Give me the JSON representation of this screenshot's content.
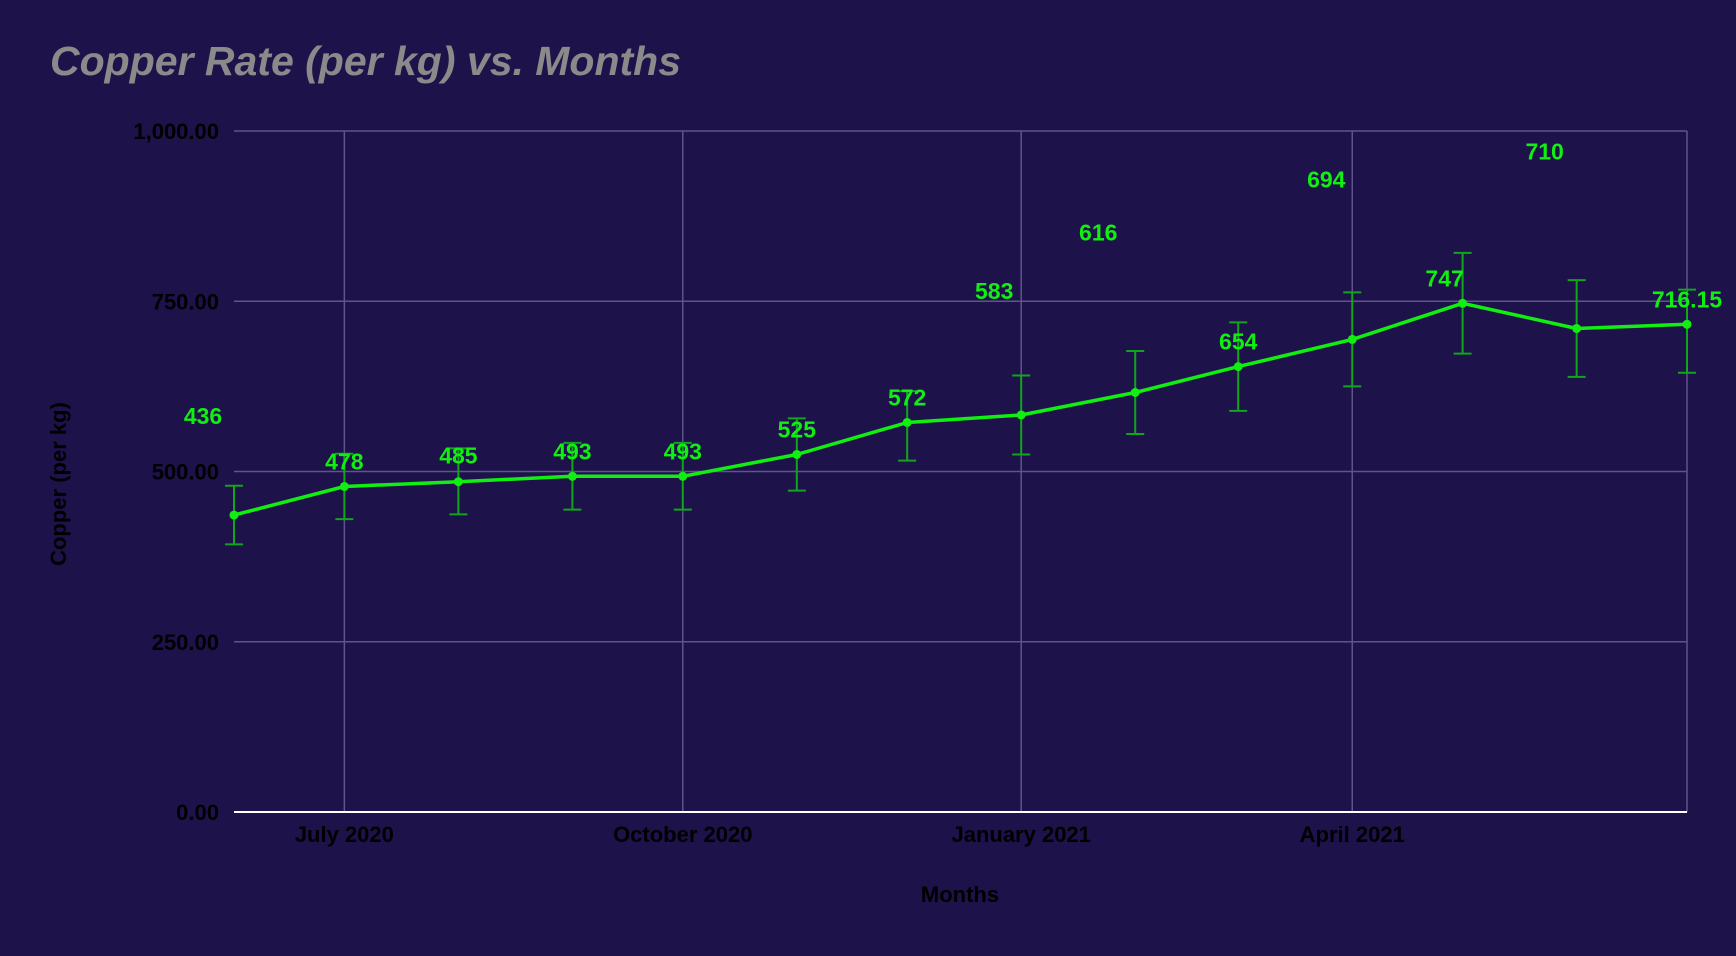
{
  "colors": {
    "background": "#1e124a",
    "title": "#8a8a8a",
    "line": "#11ee11",
    "error_bar": "#11a51b",
    "grid": "#5f5588",
    "axis_text": "#000000",
    "axis_line": "#ffffff"
  },
  "chart_data": {
    "type": "line",
    "title": "Copper Rate (per kg) vs. Months",
    "xlabel": "Months",
    "ylabel": "Copper (per kg)",
    "x_tick_labels": [
      "July 2020",
      "October 2020",
      "January 2021",
      "April 2021"
    ],
    "x_tick_dates": [
      "2020-07-01",
      "2020-10-01",
      "2021-01-01",
      "2021-04-01"
    ],
    "x_range": [
      "2020-06-01",
      "2021-07-01"
    ],
    "y_tick_labels": [
      "0.00",
      "250.00",
      "500.00",
      "750.00",
      "1,000.00"
    ],
    "ylim": [
      0,
      1000
    ],
    "grid": true,
    "series": [
      {
        "x": [
          "2020-06-01",
          "2020-07-01",
          "2020-08-01",
          "2020-09-01",
          "2020-10-01",
          "2020-11-01",
          "2020-12-01",
          "2021-01-01",
          "2021-02-01",
          "2021-03-01",
          "2021-04-01",
          "2021-05-01",
          "2021-06-01",
          "2021-07-01"
        ],
        "values": [
          436,
          478,
          485,
          493,
          493,
          525,
          572,
          583,
          616,
          654,
          694,
          747,
          710,
          716.15
        ],
        "error_low": [
          393,
          430,
          437,
          444,
          444,
          472,
          516,
          525,
          555,
          589,
          625,
          673,
          639,
          645
        ],
        "error_high": [
          479,
          526,
          534,
          542,
          542,
          578,
          618,
          641,
          677,
          719,
          763,
          821,
          781,
          767
        ],
        "data_labels": [
          "436",
          "478",
          "485",
          "493",
          "493",
          "525",
          "572",
          "583",
          "616",
          "654",
          "694",
          "747",
          "710",
          "716.15"
        ]
      }
    ]
  }
}
